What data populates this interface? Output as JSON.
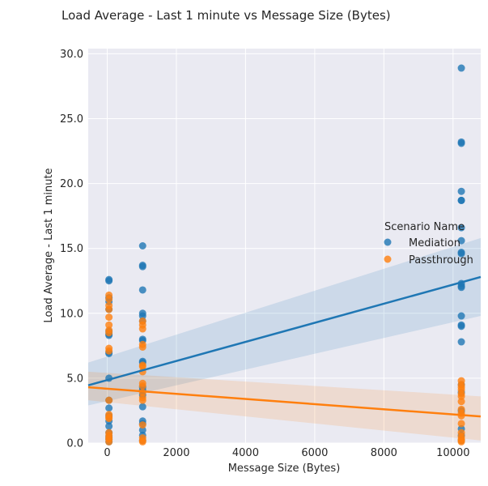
{
  "chart_data": {
    "type": "scatter",
    "title": "Load Average - Last 1 minute vs Message Size (Bytes)",
    "xlabel": "Message Size (Bytes)",
    "ylabel": "Load Average - Last 1 minute",
    "xlim": [
      -550,
      10800
    ],
    "ylim": [
      0,
      30.4
    ],
    "x_ticks": [
      0,
      2000,
      4000,
      6000,
      8000,
      10000
    ],
    "x_tick_labels": [
      "0",
      "2000",
      "4000",
      "6000",
      "8000",
      "10000"
    ],
    "y_ticks": [
      0,
      5,
      10,
      15,
      20,
      25,
      30
    ],
    "y_tick_labels": [
      "0.0",
      "5.0",
      "10.0",
      "15.0",
      "20.0",
      "25.0",
      "30.0"
    ],
    "grid": true,
    "legend": {
      "title": "Scenario Name",
      "position": "right"
    },
    "series": [
      {
        "name": "Mediation",
        "color": "#1f77b4",
        "points": [
          [
            50,
            12.6
          ],
          [
            50,
            12.5
          ],
          [
            50,
            11.2
          ],
          [
            50,
            10.9
          ],
          [
            50,
            10.3
          ],
          [
            50,
            8.6
          ],
          [
            50,
            8.4
          ],
          [
            50,
            8.3
          ],
          [
            50,
            7.0
          ],
          [
            50,
            6.9
          ],
          [
            50,
            5.0
          ],
          [
            50,
            3.3
          ],
          [
            50,
            2.7
          ],
          [
            50,
            2.1
          ],
          [
            50,
            1.7
          ],
          [
            50,
            1.3
          ],
          [
            50,
            0.8
          ],
          [
            50,
            0.5
          ],
          [
            50,
            0.3
          ],
          [
            50,
            0.1
          ],
          [
            1024,
            15.2
          ],
          [
            1024,
            13.7
          ],
          [
            1024,
            13.6
          ],
          [
            1024,
            11.8
          ],
          [
            1024,
            10.0
          ],
          [
            1024,
            9.8
          ],
          [
            1024,
            9.4
          ],
          [
            1024,
            8.0
          ],
          [
            1024,
            7.9
          ],
          [
            1024,
            6.3
          ],
          [
            1024,
            6.2
          ],
          [
            1024,
            4.3
          ],
          [
            1024,
            4.1
          ],
          [
            1024,
            3.7
          ],
          [
            1024,
            2.8
          ],
          [
            1024,
            1.7
          ],
          [
            1024,
            1.5
          ],
          [
            1024,
            1.0
          ],
          [
            1024,
            0.6
          ],
          [
            1024,
            0.2
          ],
          [
            10240,
            28.9
          ],
          [
            10240,
            23.2
          ],
          [
            10240,
            23.1
          ],
          [
            10240,
            19.4
          ],
          [
            10240,
            18.7
          ],
          [
            10240,
            18.7
          ],
          [
            10240,
            16.6
          ],
          [
            10240,
            15.6
          ],
          [
            10240,
            14.7
          ],
          [
            10240,
            14.6
          ],
          [
            10240,
            12.3
          ],
          [
            10240,
            12.1
          ],
          [
            10240,
            12.0
          ],
          [
            10240,
            9.8
          ],
          [
            10240,
            9.1
          ],
          [
            10240,
            9.0
          ],
          [
            10240,
            7.8
          ],
          [
            10240,
            4.5
          ],
          [
            10240,
            3.9
          ],
          [
            10240,
            2.5
          ],
          [
            10240,
            1.1
          ],
          [
            10240,
            0.6
          ],
          [
            10240,
            0.2
          ]
        ],
        "regression": {
          "x": [
            -550,
            10800
          ],
          "y": [
            4.45,
            12.8
          ]
        },
        "ci_band": {
          "x": [
            -550,
            10800
          ],
          "lower": [
            2.9,
            9.8
          ],
          "upper": [
            6.2,
            15.8
          ]
        }
      },
      {
        "name": "Passthrough",
        "color": "#ff7f0e",
        "points": [
          [
            50,
            11.4
          ],
          [
            50,
            11.1
          ],
          [
            50,
            10.6
          ],
          [
            50,
            10.3
          ],
          [
            50,
            9.7
          ],
          [
            50,
            9.1
          ],
          [
            50,
            8.7
          ],
          [
            50,
            8.5
          ],
          [
            50,
            7.3
          ],
          [
            50,
            7.1
          ],
          [
            50,
            3.3
          ],
          [
            50,
            2.2
          ],
          [
            50,
            2.0
          ],
          [
            50,
            1.9
          ],
          [
            50,
            0.8
          ],
          [
            50,
            0.6
          ],
          [
            50,
            0.4
          ],
          [
            50,
            0.3
          ],
          [
            50,
            0.1
          ],
          [
            1024,
            9.4
          ],
          [
            1024,
            9.1
          ],
          [
            1024,
            8.8
          ],
          [
            1024,
            7.6
          ],
          [
            1024,
            7.4
          ],
          [
            1024,
            6.0
          ],
          [
            1024,
            5.9
          ],
          [
            1024,
            5.5
          ],
          [
            1024,
            4.6
          ],
          [
            1024,
            4.4
          ],
          [
            1024,
            3.9
          ],
          [
            1024,
            3.5
          ],
          [
            1024,
            3.3
          ],
          [
            1024,
            1.4
          ],
          [
            1024,
            0.4
          ],
          [
            1024,
            0.2
          ],
          [
            1024,
            0.1
          ],
          [
            10240,
            4.8
          ],
          [
            10240,
            4.5
          ],
          [
            10240,
            4.3
          ],
          [
            10240,
            4.1
          ],
          [
            10240,
            3.8
          ],
          [
            10240,
            3.6
          ],
          [
            10240,
            3.2
          ],
          [
            10240,
            2.6
          ],
          [
            10240,
            2.3
          ],
          [
            10240,
            2.1
          ],
          [
            10240,
            1.5
          ],
          [
            10240,
            0.8
          ],
          [
            10240,
            0.5
          ],
          [
            10240,
            0.3
          ],
          [
            10240,
            0.2
          ],
          [
            10240,
            0.1
          ]
        ],
        "regression": {
          "x": [
            -550,
            10800
          ],
          "y": [
            4.3,
            2.05
          ]
        },
        "ci_band": {
          "x": [
            -550,
            10800
          ],
          "lower": [
            3.3,
            0.2
          ],
          "upper": [
            5.5,
            3.6
          ]
        }
      }
    ]
  }
}
